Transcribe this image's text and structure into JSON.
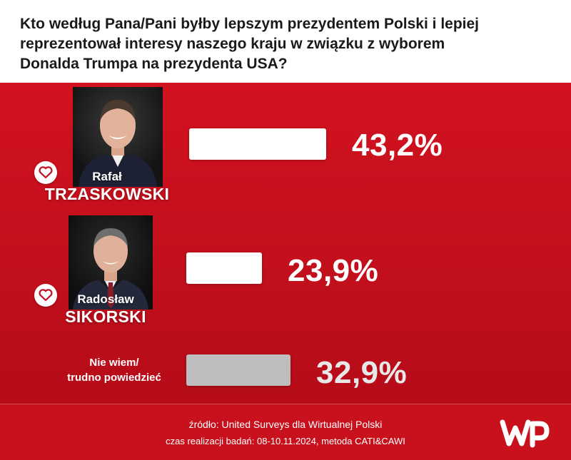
{
  "title": "Kto według Pana/Pani byłby lepszym prezydentem Polski i lepiej reprezentował interesy naszego kraju w związku z wyborem Donalda Trumpa na prezydenta USA?",
  "chart_data": {
    "type": "bar",
    "orientation": "horizontal",
    "title": "Kto według Pana/Pani byłby lepszym prezydentem Polski i lepiej reprezentował interesy naszego kraju w związku z wyborem Donalda Trumpa na prezydenta USA?",
    "categories": [
      "Rafał TRZASKOWSKI",
      "Radosław SIKORSKI",
      "Nie wiem/ trudno powiedzieć"
    ],
    "values": [
      43.2,
      23.9,
      32.9
    ],
    "value_labels": [
      "43,2%",
      "23,9%",
      "32,9%"
    ],
    "unit": "%",
    "bar_colors": [
      "#ffffff",
      "#ffffff",
      "#bdbdbd"
    ],
    "grid": false,
    "legend": "none"
  },
  "candidates": [
    {
      "first": "Rafał",
      "last": "TRZASKOWSKI",
      "pct_label": "43,2%",
      "value": 43.2,
      "icon": "heart-icon"
    },
    {
      "first": "Radosław",
      "last": "SIKORSKI",
      "pct_label": "23,9%",
      "value": 23.9,
      "icon": "heart-icon"
    }
  ],
  "undecided": {
    "line1": "Nie wiem/",
    "line2": "trudno powiedzieć",
    "pct_label": "32,9%",
    "value": 32.9
  },
  "footer": {
    "source": "źródło: United Surveys dla Wirtualnej Polski",
    "period": "czas realizacji badań: 08-10.11.2024, metoda CATI&CAWI"
  },
  "colors": {
    "background": "#c4101d",
    "header": "#ffffff",
    "bar_candidate": "#ffffff",
    "bar_undecided": "#bdbdbd",
    "pct_undecided": "#e8e8e8"
  },
  "logo": {
    "icon": "wp-logo-icon"
  }
}
